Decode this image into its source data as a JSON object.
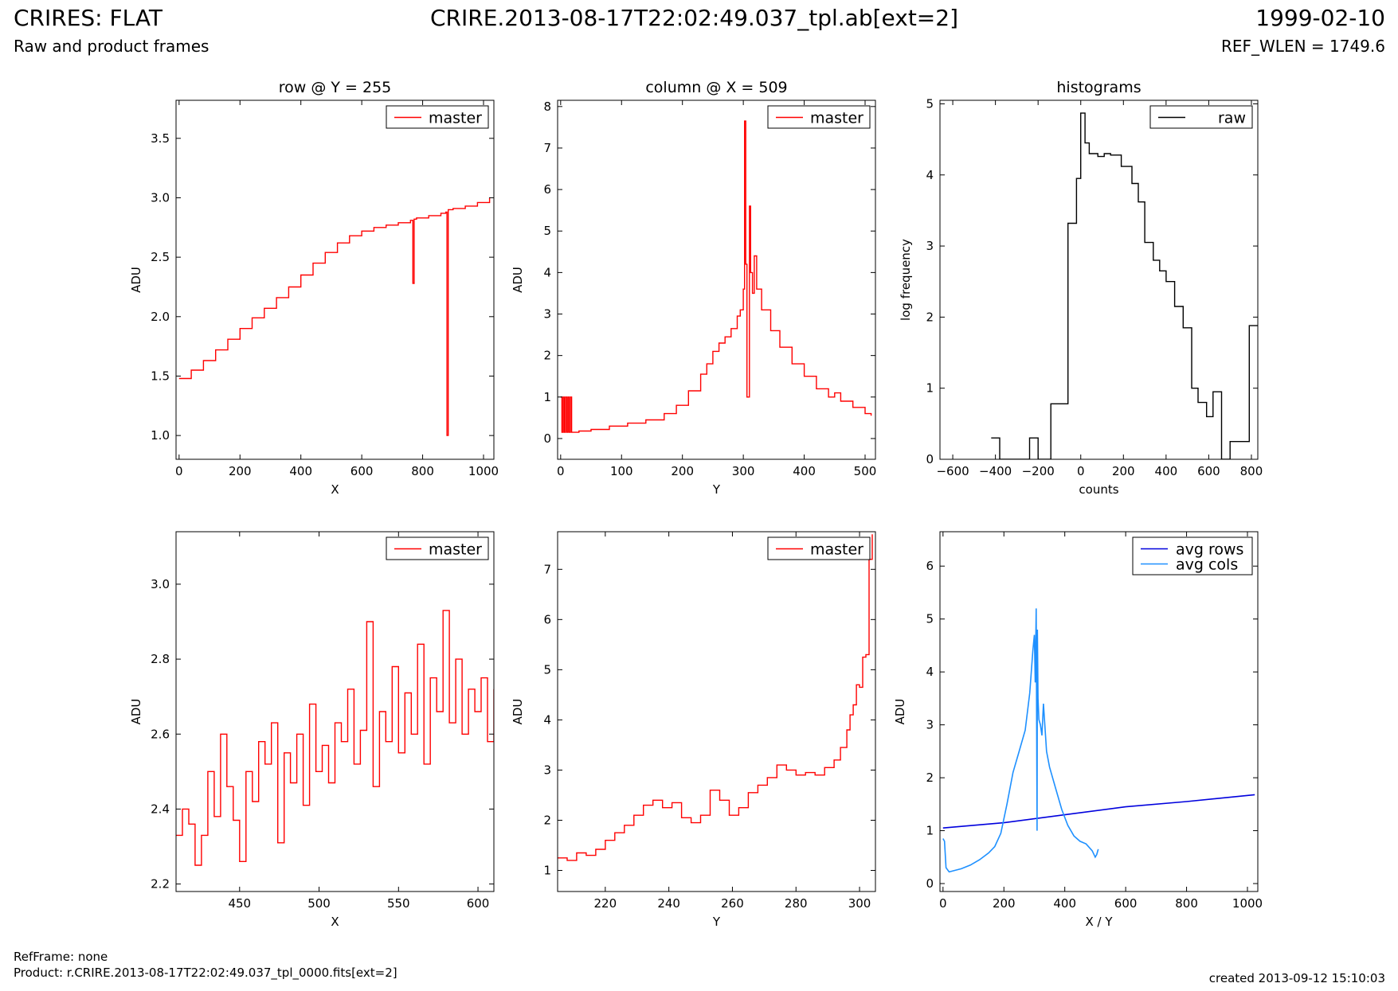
{
  "header": {
    "title": "CRIRES: FLAT",
    "subtitle": "Raw and product frames",
    "file": "CRIRE.2013-08-17T22:02:49.037_tpl.ab[ext=2]",
    "date": "1999-02-10",
    "ref_wlen": "REF_WLEN = 1749.6"
  },
  "footer": {
    "ref_frame": "RefFrame: none",
    "product": "Product: r.CRIRE.2013-08-17T22:02:49.037_tpl_0000.fits[ext=2]",
    "created": "created 2013-09-12 15:10:03"
  },
  "colors": {
    "master": "#ff0000",
    "raw": "#000000",
    "avg_rows": "#0000dd",
    "avg_cols": "#1e90ff"
  },
  "chart_data": [
    {
      "id": "row-plot",
      "type": "line",
      "title": "row @ Y = 255",
      "xlabel": "X",
      "ylabel": "ADU",
      "xlim": [
        -10,
        1034
      ],
      "ylim": [
        0.8,
        3.82
      ],
      "xticks": [
        0,
        200,
        400,
        600,
        800,
        1000
      ],
      "yticks": [
        1.0,
        1.5,
        2.0,
        2.5,
        3.0,
        3.5
      ],
      "ytick_decimals": 1,
      "legend_position": "top-right",
      "series": [
        {
          "name": "master",
          "color": "#ff0000",
          "step": true,
          "x": [
            0,
            40,
            80,
            120,
            160,
            200,
            240,
            280,
            320,
            360,
            400,
            440,
            480,
            520,
            560,
            600,
            640,
            680,
            720,
            760,
            768,
            772,
            780,
            820,
            860,
            876,
            880,
            884,
            900,
            940,
            980,
            1020
          ],
          "y": [
            1.48,
            1.55,
            1.63,
            1.72,
            1.81,
            1.9,
            1.99,
            2.07,
            2.16,
            2.25,
            2.35,
            2.45,
            2.54,
            2.62,
            2.68,
            2.72,
            2.75,
            2.77,
            2.79,
            2.81,
            2.28,
            2.82,
            2.83,
            2.85,
            2.87,
            2.88,
            1.0,
            2.9,
            2.91,
            2.93,
            2.96,
            3.0
          ]
        }
      ]
    },
    {
      "id": "column-plot",
      "type": "line",
      "title": "column @ X = 509",
      "xlabel": "Y",
      "ylabel": "ADU",
      "xlim": [
        -5,
        517
      ],
      "ylim": [
        -0.5,
        8.15
      ],
      "xticks": [
        0,
        100,
        200,
        300,
        400,
        500
      ],
      "yticks": [
        0,
        1,
        2,
        3,
        4,
        5,
        6,
        7,
        8
      ],
      "ytick_decimals": 0,
      "legend_position": "top-right",
      "series": [
        {
          "name": "master",
          "color": "#ff0000",
          "step": true,
          "x": [
            0,
            2,
            4,
            6,
            8,
            10,
            12,
            14,
            16,
            18,
            20,
            30,
            50,
            80,
            110,
            140,
            170,
            190,
            210,
            230,
            240,
            250,
            260,
            270,
            280,
            290,
            295,
            300,
            302,
            304,
            306,
            308,
            310,
            312,
            315,
            318,
            322,
            330,
            345,
            360,
            380,
            400,
            420,
            440,
            450,
            460,
            480,
            500,
            510
          ],
          "y": [
            1.0,
            0.15,
            1.0,
            0.15,
            1.0,
            0.15,
            1.0,
            0.15,
            1.0,
            0.15,
            0.15,
            0.18,
            0.22,
            0.3,
            0.37,
            0.45,
            0.6,
            0.8,
            1.15,
            1.55,
            1.8,
            2.1,
            2.3,
            2.45,
            2.65,
            2.95,
            3.1,
            3.6,
            7.65,
            4.2,
            1.0,
            1.0,
            5.6,
            4.0,
            3.5,
            4.4,
            3.6,
            3.1,
            2.6,
            2.2,
            1.8,
            1.5,
            1.2,
            1.0,
            1.1,
            0.9,
            0.75,
            0.6,
            0.55
          ]
        }
      ]
    },
    {
      "id": "histogram-plot",
      "type": "line",
      "title": "histograms",
      "xlabel": "counts",
      "ylabel": "log frequency",
      "xlim": [
        -660,
        830
      ],
      "ylim": [
        0,
        5.05
      ],
      "xticks": [
        -600,
        -400,
        -200,
        0,
        200,
        400,
        600,
        800
      ],
      "yticks": [
        0,
        1,
        2,
        3,
        4,
        5
      ],
      "ytick_decimals": 0,
      "legend_position": "top-right",
      "series": [
        {
          "name": "raw",
          "color": "#000000",
          "step": true,
          "x": [
            -420,
            -380,
            -240,
            -200,
            -140,
            -60,
            -20,
            0,
            20,
            40,
            80,
            110,
            140,
            190,
            240,
            270,
            300,
            340,
            370,
            400,
            440,
            480,
            520,
            550,
            590,
            620,
            660,
            700,
            770,
            790,
            830
          ],
          "y": [
            0.3,
            0,
            0.3,
            0,
            0.78,
            3.32,
            3.95,
            4.87,
            4.45,
            4.3,
            4.26,
            4.3,
            4.28,
            4.12,
            3.88,
            3.62,
            3.05,
            2.8,
            2.65,
            2.5,
            2.15,
            1.85,
            1.0,
            0.8,
            0.6,
            0.95,
            0,
            0.25,
            0.25,
            1.88,
            1.88
          ]
        }
      ]
    },
    {
      "id": "row-zoom-plot",
      "type": "line",
      "title": "",
      "xlabel": "X",
      "ylabel": "ADU",
      "xlim": [
        410,
        610
      ],
      "ylim": [
        2.18,
        3.14
      ],
      "xticks": [
        450,
        500,
        550,
        600
      ],
      "yticks": [
        2.2,
        2.4,
        2.6,
        2.8,
        3.0
      ],
      "ytick_decimals": 1,
      "legend_position": "top-right",
      "series": [
        {
          "name": "master",
          "color": "#ff0000",
          "step": true,
          "x": [
            410,
            414,
            418,
            422,
            426,
            430,
            434,
            438,
            442,
            446,
            450,
            454,
            458,
            462,
            466,
            470,
            474,
            478,
            482,
            486,
            490,
            494,
            498,
            502,
            506,
            510,
            514,
            518,
            522,
            526,
            530,
            534,
            538,
            542,
            546,
            550,
            554,
            558,
            562,
            566,
            570,
            574,
            578,
            582,
            586,
            590,
            594,
            598,
            602,
            606,
            610
          ],
          "y": [
            2.33,
            2.4,
            2.36,
            2.25,
            2.33,
            2.5,
            2.38,
            2.6,
            2.46,
            2.37,
            2.26,
            2.5,
            2.42,
            2.58,
            2.52,
            2.63,
            2.31,
            2.55,
            2.47,
            2.6,
            2.41,
            2.68,
            2.5,
            2.57,
            2.47,
            2.63,
            2.58,
            2.72,
            2.52,
            2.61,
            2.9,
            2.46,
            2.66,
            2.58,
            2.78,
            2.55,
            2.71,
            2.6,
            2.84,
            2.52,
            2.75,
            2.66,
            2.93,
            2.63,
            2.8,
            2.6,
            2.72,
            2.66,
            2.75,
            2.58,
            2.72
          ]
        }
      ]
    },
    {
      "id": "column-zoom-plot",
      "type": "line",
      "title": "",
      "xlabel": "Y",
      "ylabel": "ADU",
      "xlim": [
        205,
        305
      ],
      "ylim": [
        0.58,
        7.75
      ],
      "xticks": [
        220,
        240,
        260,
        280,
        300
      ],
      "yticks": [
        1,
        2,
        3,
        4,
        5,
        6,
        7
      ],
      "ytick_decimals": 0,
      "legend_position": "top-right",
      "series": [
        {
          "name": "master",
          "color": "#ff0000",
          "step": true,
          "x": [
            205,
            208,
            211,
            214,
            217,
            220,
            223,
            226,
            229,
            232,
            235,
            238,
            241,
            244,
            247,
            250,
            253,
            256,
            259,
            262,
            265,
            268,
            271,
            274,
            277,
            280,
            283,
            286,
            289,
            292,
            294,
            296,
            297,
            298,
            299,
            300,
            301,
            302,
            303,
            304
          ],
          "y": [
            1.25,
            1.2,
            1.35,
            1.3,
            1.42,
            1.6,
            1.75,
            1.9,
            2.1,
            2.3,
            2.4,
            2.25,
            2.35,
            2.05,
            1.95,
            2.1,
            2.6,
            2.4,
            2.1,
            2.25,
            2.55,
            2.7,
            2.85,
            3.1,
            3.0,
            2.9,
            2.95,
            2.9,
            3.05,
            3.2,
            3.45,
            3.8,
            4.1,
            4.3,
            4.7,
            4.65,
            5.25,
            5.3,
            7.2,
            7.7
          ]
        }
      ]
    },
    {
      "id": "average-plot",
      "type": "line",
      "title": "",
      "xlabel": "X / Y",
      "ylabel": "ADU",
      "xlim": [
        -10,
        1034
      ],
      "ylim": [
        -0.15,
        6.65
      ],
      "xticks": [
        0,
        200,
        400,
        600,
        800,
        1000
      ],
      "yticks": [
        0,
        1,
        2,
        3,
        4,
        5,
        6
      ],
      "ytick_decimals": 0,
      "legend_position": "top-right",
      "series": [
        {
          "name": "avg rows",
          "color": "#0000dd",
          "step": false,
          "x": [
            0,
            200,
            400,
            600,
            800,
            1024
          ],
          "y": [
            1.05,
            1.15,
            1.3,
            1.45,
            1.55,
            1.68
          ]
        },
        {
          "name": "avg cols",
          "color": "#1e90ff",
          "step": false,
          "x": [
            0,
            5,
            10,
            20,
            40,
            60,
            90,
            120,
            150,
            170,
            190,
            210,
            230,
            250,
            270,
            285,
            295,
            300,
            303,
            306,
            309,
            310,
            312,
            315,
            320,
            325,
            330,
            340,
            350,
            370,
            390,
            410,
            430,
            450,
            470,
            490,
            500,
            505,
            510
          ],
          "y": [
            0.85,
            0.8,
            0.3,
            0.22,
            0.25,
            0.28,
            0.35,
            0.45,
            0.58,
            0.7,
            0.95,
            1.5,
            2.1,
            2.5,
            2.9,
            3.6,
            4.4,
            4.7,
            3.8,
            5.2,
            1.0,
            4.8,
            3.5,
            3.1,
            3.0,
            2.8,
            3.4,
            2.5,
            2.2,
            1.8,
            1.4,
            1.1,
            0.9,
            0.8,
            0.75,
            0.62,
            0.5,
            0.55,
            0.65
          ]
        }
      ]
    }
  ]
}
